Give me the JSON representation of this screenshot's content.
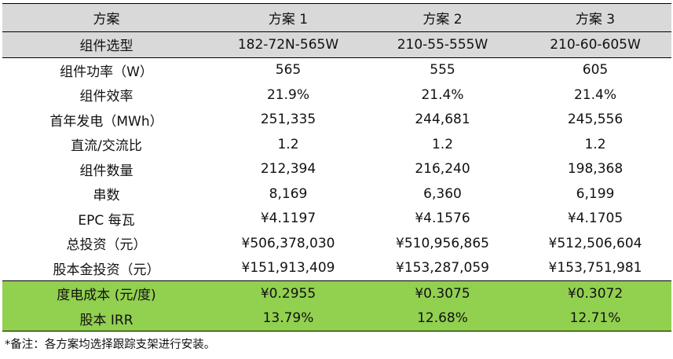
{
  "table": {
    "header": [
      "方案",
      "方案 1",
      "方案 2",
      "方案 3"
    ],
    "rows": [
      {
        "label": "组件选型",
        "values": [
          "182-72N-565W",
          "210-55-555W",
          "210-60-605W"
        ]
      },
      {
        "label": "组件功率（W）",
        "values": [
          "565",
          "555",
          "605"
        ]
      },
      {
        "label": "组件效率",
        "values": [
          "21.9%",
          "21.4%",
          "21.4%"
        ]
      },
      {
        "label": "首年发电（MWh）",
        "values": [
          "251,335",
          "244,681",
          "245,556"
        ]
      },
      {
        "label": "直流/交流比",
        "values": [
          "1.2",
          "1.2",
          "1.2"
        ]
      },
      {
        "label": "组件数量",
        "values": [
          "212,394",
          "216,240",
          "198,368"
        ]
      },
      {
        "label": "串数",
        "values": [
          "8,169",
          "6,360",
          "6,199"
        ]
      },
      {
        "label": "EPC 每瓦",
        "values": [
          "¥4.1197",
          "¥4.1576",
          "¥4.1705"
        ]
      },
      {
        "label": "总投资（元）",
        "values": [
          "¥506,378,030",
          "¥510,956,865",
          "¥512,506,604"
        ]
      },
      {
        "label": "股本金投资（元）",
        "values": [
          "¥151,913,409",
          "¥153,287,059",
          "¥153,751,981"
        ]
      },
      {
        "label": "度电成本 (元/度)",
        "values": [
          "¥0.2955",
          "¥0.3075",
          "¥0.3072"
        ]
      },
      {
        "label": "股本 IRR",
        "values": [
          "13.79%",
          "12.68%",
          "12.71%"
        ]
      }
    ]
  },
  "note": "*备注：各方案均选择跟踪支架进行安装。",
  "colors": {
    "header_bg": "#d9d9d9",
    "highlight_bg": "#92d050"
  }
}
